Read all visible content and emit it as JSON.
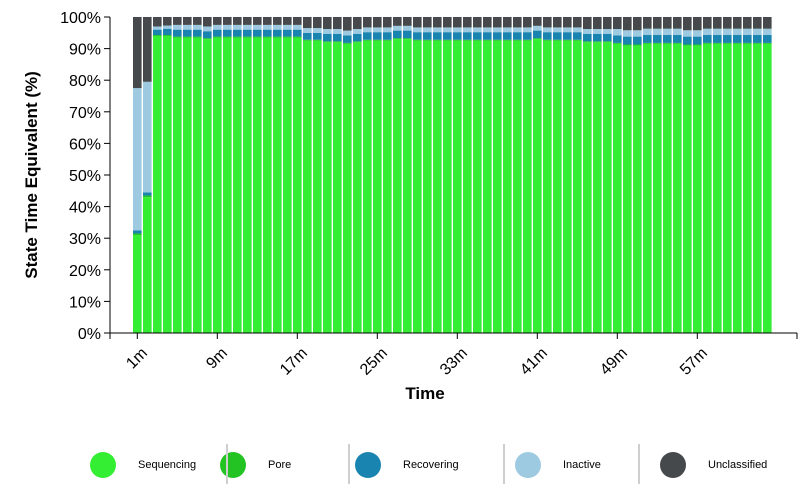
{
  "chart_data": {
    "type": "bar",
    "stacked": true,
    "xlabel": "Time",
    "ylabel": "State Time Equivalent (%)",
    "ylim": [
      0,
      100
    ],
    "yticks": [
      "0%",
      "10%",
      "20%",
      "30%",
      "40%",
      "50%",
      "60%",
      "70%",
      "80%",
      "90%",
      "100%"
    ],
    "xtick_labels": [
      "1m",
      "9m",
      "17m",
      "25m",
      "33m",
      "41m",
      "49m",
      "57m"
    ],
    "xtick_values": [
      1,
      9,
      17,
      25,
      33,
      41,
      49,
      57
    ],
    "x": [
      1,
      2,
      3,
      4,
      5,
      6,
      7,
      8,
      9,
      10,
      11,
      12,
      13,
      14,
      15,
      16,
      17,
      18,
      19,
      20,
      21,
      22,
      23,
      24,
      25,
      26,
      27,
      28,
      29,
      30,
      31,
      32,
      33,
      34,
      35,
      36,
      37,
      38,
      39,
      40,
      41,
      42,
      43,
      44,
      45,
      46,
      47,
      48,
      49,
      50,
      51,
      52,
      53,
      54,
      55,
      56,
      57,
      58,
      59,
      60,
      61,
      62,
      63,
      64
    ],
    "series": [
      {
        "name": "Sequencing",
        "color": "#33ee33",
        "values": [
          31,
          43,
          94,
          94,
          93.5,
          93.5,
          93.5,
          93,
          93.5,
          93.5,
          93.5,
          93.5,
          93.5,
          93.5,
          93.5,
          93.5,
          93.5,
          92.5,
          92.5,
          92,
          92,
          91.5,
          92,
          92.5,
          92.5,
          92.5,
          93,
          93,
          92.5,
          92.5,
          92.5,
          92.5,
          92.5,
          92.5,
          92.5,
          92.5,
          92.5,
          92.5,
          92.5,
          92.5,
          93,
          92.5,
          92.5,
          92.5,
          92.5,
          92,
          92,
          92,
          91.5,
          91,
          91,
          91.5,
          91.5,
          91.5,
          91.5,
          91,
          91,
          91.5,
          91.5,
          91.5,
          91.5,
          91.5,
          91.5,
          91.5
        ]
      },
      {
        "name": "Pore",
        "color": "#22c322",
        "values": [
          0.5,
          0.5,
          0.3,
          0.3,
          0.3,
          0.3,
          0.3,
          0.3,
          0.3,
          0.3,
          0.3,
          0.3,
          0.3,
          0.3,
          0.3,
          0.3,
          0.3,
          0.3,
          0.3,
          0.3,
          0.3,
          0.3,
          0.3,
          0.3,
          0.3,
          0.3,
          0.3,
          0.3,
          0.3,
          0.3,
          0.3,
          0.3,
          0.3,
          0.3,
          0.3,
          0.3,
          0.3,
          0.3,
          0.3,
          0.3,
          0.3,
          0.3,
          0.3,
          0.3,
          0.3,
          0.3,
          0.3,
          0.3,
          0.3,
          0.3,
          0.3,
          0.3,
          0.3,
          0.3,
          0.3,
          0.3,
          0.3,
          0.3,
          0.3,
          0.3,
          0.3,
          0.3,
          0.3,
          0.3
        ]
      },
      {
        "name": "Recovering",
        "color": "#1a84b0",
        "values": [
          1,
          1,
          1.7,
          2,
          2.2,
          2.2,
          2.2,
          2.2,
          2.2,
          2.2,
          2.2,
          2.2,
          2.2,
          2.2,
          2.2,
          2.2,
          2.2,
          2.2,
          2.2,
          2.4,
          2.4,
          2.4,
          2.4,
          2.4,
          2.4,
          2.4,
          2.4,
          2.4,
          2.4,
          2.4,
          2.4,
          2.4,
          2.4,
          2.4,
          2.4,
          2.4,
          2.4,
          2.4,
          2.4,
          2.4,
          2.4,
          2.4,
          2.4,
          2.4,
          2.4,
          2.4,
          2.4,
          2.4,
          2.4,
          2.5,
          2.5,
          2.5,
          2.5,
          2.5,
          2.5,
          2.5,
          2.5,
          2.5,
          2.5,
          2.5,
          2.5,
          2.5,
          2.5,
          2.5
        ]
      },
      {
        "name": "Inactive",
        "color": "#9ecae1",
        "values": [
          45,
          35,
          1,
          1,
          1.5,
          1.5,
          1.5,
          1.5,
          1.5,
          1.5,
          1.5,
          1.5,
          1.5,
          1.5,
          1.5,
          1.5,
          1.5,
          1.5,
          1.5,
          1.5,
          1.5,
          1.5,
          1.5,
          1.5,
          1.5,
          1.5,
          1.5,
          1.5,
          1.5,
          1.5,
          1.5,
          1.5,
          1.5,
          1.5,
          1.5,
          1.5,
          1.5,
          1.5,
          1.5,
          1.5,
          1.5,
          1.5,
          1.5,
          1.5,
          1.5,
          1.5,
          1.5,
          1.5,
          2,
          2,
          2,
          2,
          2,
          2,
          2,
          2,
          2,
          2,
          2,
          2,
          2,
          2,
          2,
          2
        ]
      },
      {
        "name": "Unclassified",
        "color": "#46494b",
        "values": [
          22.5,
          20.5,
          3,
          2.7,
          2.5,
          2.5,
          2.5,
          3,
          2.5,
          2.5,
          2.5,
          2.5,
          2.5,
          2.5,
          2.5,
          2.5,
          2.5,
          3.5,
          3.5,
          3.8,
          3.8,
          4.3,
          3.8,
          3.3,
          3.3,
          3.3,
          2.8,
          2.8,
          3.3,
          3.3,
          3.3,
          3.3,
          3.3,
          3.3,
          3.3,
          3.3,
          3.3,
          3.3,
          3.3,
          3.3,
          2.8,
          3.3,
          3.3,
          3.3,
          3.3,
          3.8,
          3.8,
          3.8,
          3.8,
          4.2,
          4.2,
          3.7,
          3.7,
          3.7,
          3.7,
          4.2,
          4.2,
          3.7,
          3.7,
          3.7,
          3.7,
          3.7,
          3.7,
          3.7
        ]
      }
    ],
    "legend_position": "bottom",
    "grid": false
  }
}
